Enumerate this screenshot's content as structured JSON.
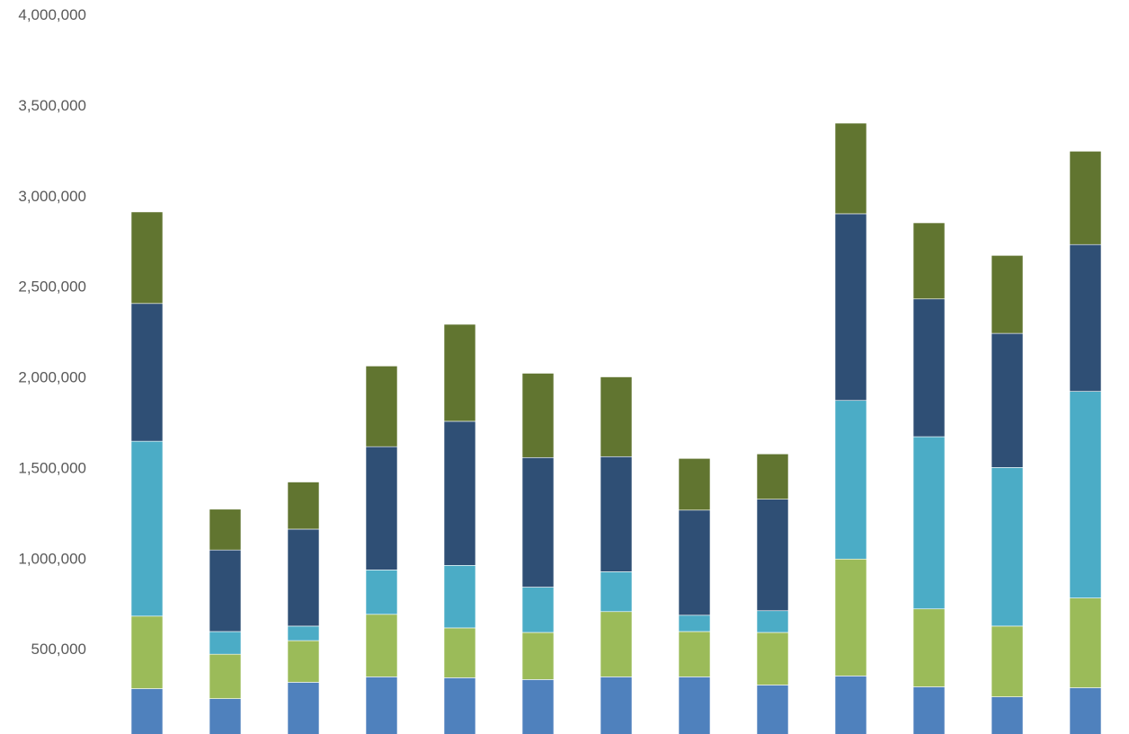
{
  "chart_data": {
    "type": "bar",
    "stacked": true,
    "title": "",
    "xlabel": "",
    "ylabel": "",
    "ylim": [
      0,
      4000000
    ],
    "y_ticks": [
      "500,000",
      "1,000,000",
      "1,500,000",
      "2,000,000",
      "2,500,000",
      "3,000,000",
      "3,500,000",
      "4,000,000"
    ],
    "y_tick_values": [
      500000,
      1000000,
      1500000,
      2000000,
      2500000,
      3000000,
      3500000,
      4000000
    ],
    "grid": false,
    "legend": "none",
    "categories": [
      "",
      "",
      "",
      "",
      "",
      "",
      "",
      "",
      "",
      "",
      "",
      "",
      ""
    ],
    "series": [
      {
        "color": "#4f81bd",
        "values": [
          280000,
          225000,
          315000,
          345000,
          340000,
          330000,
          345000,
          345000,
          300000,
          350000,
          290000,
          235000,
          285000
        ]
      },
      {
        "color": "#9bbb59",
        "values": [
          400000,
          245000,
          230000,
          345000,
          275000,
          260000,
          360000,
          250000,
          290000,
          645000,
          430000,
          390000,
          495000
        ]
      },
      {
        "color": "#4bacc6",
        "values": [
          965000,
          125000,
          80000,
          245000,
          345000,
          250000,
          220000,
          90000,
          120000,
          875000,
          950000,
          875000,
          1140000
        ]
      },
      {
        "color": "#2f4f75",
        "values": [
          760000,
          450000,
          535000,
          680000,
          795000,
          715000,
          635000,
          580000,
          615000,
          1030000,
          760000,
          740000,
          810000
        ]
      },
      {
        "color": "#617530",
        "values": [
          505000,
          225000,
          260000,
          445000,
          535000,
          465000,
          440000,
          285000,
          250000,
          500000,
          420000,
          430000,
          515000
        ]
      }
    ]
  }
}
